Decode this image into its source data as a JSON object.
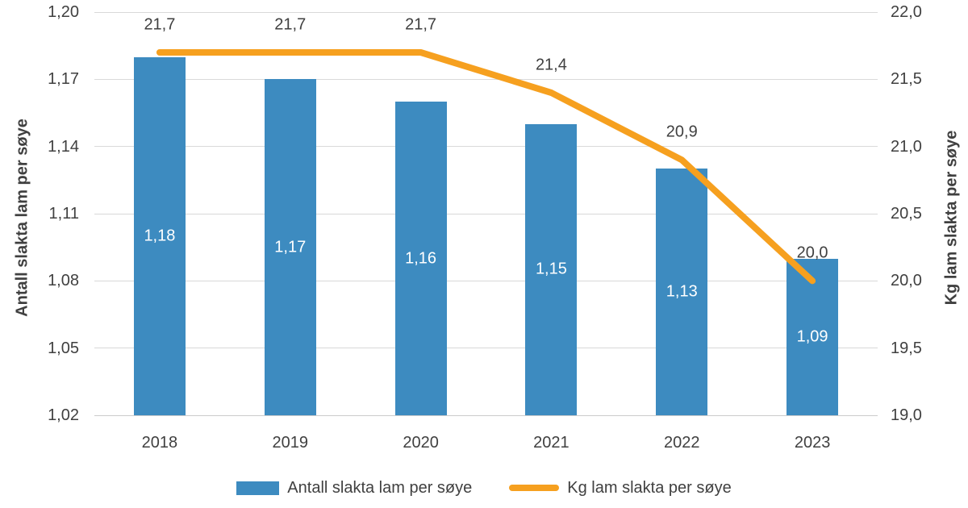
{
  "chart_data": {
    "type": "bar",
    "combo": true,
    "categories": [
      "2018",
      "2019",
      "2020",
      "2021",
      "2022",
      "2023"
    ],
    "series": [
      {
        "name": "Antall slakta lam per søye",
        "type": "bar",
        "axis": "left",
        "values": [
          1.18,
          1.17,
          1.16,
          1.15,
          1.13,
          1.09
        ],
        "labels": [
          "1,18",
          "1,17",
          "1,16",
          "1,15",
          "1,13",
          "1,09"
        ],
        "label_position": "inside-center"
      },
      {
        "name": "Kg lam slakta per søye",
        "type": "line",
        "axis": "right",
        "values": [
          21.7,
          21.7,
          21.7,
          21.4,
          20.9,
          20.0
        ],
        "labels": [
          "21,7",
          "21,7",
          "21,7",
          "21,4",
          "20,9",
          "20,0"
        ],
        "label_position": "above"
      }
    ],
    "left_axis": {
      "title": "Antall slakta lam per søye",
      "min": 1.02,
      "max": 1.2,
      "step": 0.03,
      "ticks": [
        "1,20",
        "1,17",
        "1,14",
        "1,11",
        "1,08",
        "1,05",
        "1,02"
      ]
    },
    "right_axis": {
      "title": "Kg lam slakta per søye",
      "min": 19.0,
      "max": 22.0,
      "step": 0.5,
      "ticks": [
        "22,0",
        "21,5",
        "21,0",
        "20,5",
        "20,0",
        "19,5",
        "19,0"
      ]
    },
    "title": "",
    "grid": true,
    "legend_position": "bottom"
  },
  "legend": {
    "bar_label": "Antall slakta lam per søye",
    "line_label": "Kg lam slakta per søye"
  },
  "colors": {
    "bar": "#3d8bc0",
    "line": "#f6a01f",
    "text": "#404040",
    "bar_label_text": "#ffffff",
    "grid": "#d9d9d9",
    "axis_line": "#cccccc",
    "background": "#ffffff"
  }
}
